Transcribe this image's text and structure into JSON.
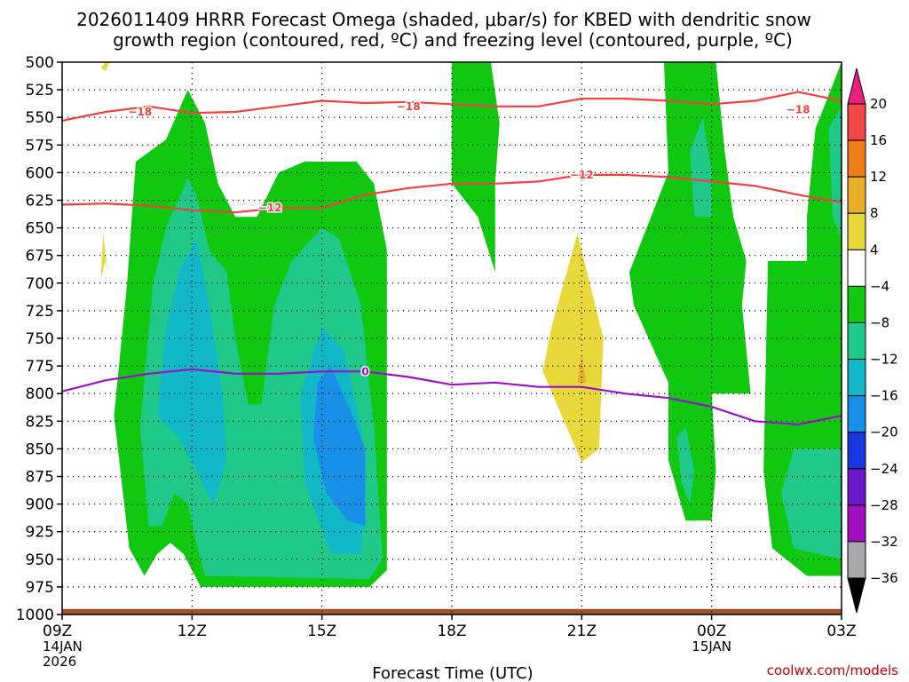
{
  "chart_data": {
    "type": "heatmap",
    "title_line1": "2026011409 HRRR Forecast Omega (shaded, μbar/s) for KBED with dendritic snow",
    "title_line2": "growth region (contoured, red, ºC) and freezing level (contoured, purple, ºC)",
    "xlabel": "Forecast Time (UTC)",
    "credit": "coolwx.com/models",
    "y_axis": {
      "inverted": true,
      "ylim": [
        500,
        1000
      ],
      "ticks": [
        500,
        525,
        550,
        575,
        600,
        625,
        650,
        675,
        700,
        725,
        750,
        775,
        800,
        825,
        850,
        875,
        900,
        925,
        950,
        975,
        1000
      ]
    },
    "x_axis": {
      "xlim": [
        9,
        27
      ],
      "ticks": [
        {
          "x": 9,
          "lines": [
            "09Z",
            "14JAN",
            "2026"
          ]
        },
        {
          "x": 12,
          "lines": [
            "12Z"
          ]
        },
        {
          "x": 15,
          "lines": [
            "15Z"
          ]
        },
        {
          "x": 18,
          "lines": [
            "18Z"
          ]
        },
        {
          "x": 21,
          "lines": [
            "21Z"
          ]
        },
        {
          "x": 24,
          "lines": [
            "00Z",
            "15JAN"
          ]
        },
        {
          "x": 27,
          "lines": [
            "03Z"
          ]
        }
      ],
      "grid_dotted": true
    },
    "colorbar": {
      "levels": [
        "20",
        "16",
        "12",
        "8",
        "4",
        "−4",
        "−8",
        "−12",
        "−16",
        "−20",
        "−24",
        "−28",
        "−32",
        "−36"
      ],
      "colors": [
        "#e8207d",
        "#f04848",
        "#ee7d1c",
        "#e8ae2a",
        "#e8d83a",
        "#ffffff",
        "#10c810",
        "#20c88a",
        "#10b8c8",
        "#1890e8",
        "#1838e0",
        "#6a18c8",
        "#a010c0",
        "#a8a8a8",
        "#000000"
      ]
    },
    "shaded_regions": [
      {
        "class": "-8 to -4",
        "color": "#10c810",
        "pts": [
          [
            10.55,
            940
          ],
          [
            10.2,
            820
          ],
          [
            10.5,
            700
          ],
          [
            10.7,
            590
          ],
          [
            11.4,
            570
          ],
          [
            11.9,
            525
          ],
          [
            12.3,
            555
          ],
          [
            12.6,
            610
          ],
          [
            13.0,
            640
          ],
          [
            13.5,
            640
          ],
          [
            14.0,
            600
          ],
          [
            14.6,
            590
          ],
          [
            15.8,
            590
          ],
          [
            16.2,
            610
          ],
          [
            16.5,
            670
          ],
          [
            16.5,
            960
          ],
          [
            16.1,
            975
          ],
          [
            12.2,
            975
          ],
          [
            11.8,
            945
          ],
          [
            11.5,
            935
          ],
          [
            11.2,
            945
          ],
          [
            10.9,
            965
          ],
          [
            10.55,
            940
          ]
        ]
      },
      {
        "class": "-12 to -8",
        "color": "#20c88a",
        "pts": [
          [
            11.0,
            920
          ],
          [
            10.8,
            830
          ],
          [
            11.1,
            700
          ],
          [
            11.4,
            650
          ],
          [
            11.9,
            605
          ],
          [
            12.1,
            620
          ],
          [
            12.4,
            670
          ],
          [
            12.8,
            690
          ],
          [
            13.0,
            750
          ],
          [
            13.3,
            810
          ],
          [
            13.6,
            810
          ],
          [
            13.9,
            720
          ],
          [
            14.3,
            680
          ],
          [
            15.0,
            650
          ],
          [
            15.4,
            660
          ],
          [
            15.9,
            720
          ],
          [
            16.2,
            830
          ],
          [
            16.4,
            950
          ],
          [
            16.1,
            968
          ],
          [
            12.3,
            965
          ],
          [
            12.1,
            935
          ],
          [
            11.9,
            900
          ],
          [
            11.6,
            890
          ],
          [
            11.3,
            920
          ],
          [
            11.0,
            920
          ]
        ]
      },
      {
        "class": "-16 to -12",
        "color": "#10b8c8",
        "pts": [
          [
            11.2,
            820
          ],
          [
            11.4,
            740
          ],
          [
            11.7,
            690
          ],
          [
            12.1,
            660
          ],
          [
            12.4,
            720
          ],
          [
            12.7,
            800
          ],
          [
            12.8,
            860
          ],
          [
            12.5,
            900
          ],
          [
            12.1,
            870
          ],
          [
            11.7,
            840
          ],
          [
            11.2,
            820
          ]
        ]
      },
      {
        "class": "-16 to -12",
        "color": "#10b8c8",
        "pts": [
          [
            14.6,
            880
          ],
          [
            14.5,
            800
          ],
          [
            15.0,
            740
          ],
          [
            15.5,
            760
          ],
          [
            15.9,
            830
          ],
          [
            16.0,
            900
          ],
          [
            15.9,
            945
          ],
          [
            15.2,
            945
          ],
          [
            14.6,
            880
          ]
        ]
      },
      {
        "class": "-20 to -16",
        "color": "#1890e8",
        "pts": [
          [
            14.8,
            840
          ],
          [
            14.9,
            790
          ],
          [
            15.2,
            775
          ],
          [
            15.6,
            810
          ],
          [
            16.0,
            850
          ],
          [
            16.0,
            920
          ],
          [
            15.6,
            915
          ],
          [
            15.1,
            890
          ],
          [
            14.8,
            840
          ]
        ]
      },
      {
        "class": "-8 to -4",
        "color": "#10c810",
        "pts": [
          [
            18.0,
            500
          ],
          [
            18.9,
            500
          ],
          [
            19.1,
            555
          ],
          [
            19.0,
            610
          ],
          [
            19.0,
            690
          ],
          [
            18.6,
            640
          ],
          [
            18.0,
            610
          ],
          [
            18.0,
            500
          ]
        ]
      },
      {
        "class": "-8 to -4",
        "color": "#10c810",
        "pts": [
          [
            22.9,
            500
          ],
          [
            24.1,
            500
          ],
          [
            24.3,
            580
          ],
          [
            24.5,
            640
          ],
          [
            24.8,
            680
          ],
          [
            24.7,
            720
          ],
          [
            24.9,
            800
          ],
          [
            24.0,
            800
          ],
          [
            24.1,
            870
          ],
          [
            24.0,
            915
          ],
          [
            23.4,
            915
          ],
          [
            23.0,
            860
          ],
          [
            23.0,
            790
          ],
          [
            22.2,
            720
          ],
          [
            22.1,
            690
          ],
          [
            23.0,
            600
          ],
          [
            22.9,
            500
          ]
        ]
      },
      {
        "class": "-12 to -8",
        "color": "#20c88a",
        "pts": [
          [
            23.5,
            580
          ],
          [
            23.8,
            550
          ],
          [
            24.0,
            600
          ],
          [
            24.0,
            640
          ],
          [
            23.6,
            640
          ],
          [
            23.5,
            580
          ]
        ]
      },
      {
        "class": "-12 to -8",
        "color": "#20c88a",
        "pts": [
          [
            23.2,
            840
          ],
          [
            23.4,
            830
          ],
          [
            23.6,
            870
          ],
          [
            23.5,
            900
          ],
          [
            23.3,
            880
          ],
          [
            23.2,
            840
          ]
        ]
      },
      {
        "class": "-8 to -4",
        "color": "#10c810",
        "pts": [
          [
            25.2,
            870
          ],
          [
            25.3,
            680
          ],
          [
            26.2,
            680
          ],
          [
            26.2,
            640
          ],
          [
            26.4,
            560
          ],
          [
            26.7,
            530
          ],
          [
            27.0,
            500
          ],
          [
            27.0,
            965
          ],
          [
            26.2,
            965
          ],
          [
            25.4,
            940
          ],
          [
            25.2,
            870
          ]
        ]
      },
      {
        "class": "-12 to -8",
        "color": "#20c88a",
        "pts": [
          [
            27.0,
            540
          ],
          [
            26.7,
            560
          ],
          [
            26.8,
            640
          ],
          [
            27.0,
            660
          ],
          [
            27.0,
            540
          ]
        ]
      },
      {
        "class": "-12 to -8",
        "color": "#20c88a",
        "pts": [
          [
            25.6,
            890
          ],
          [
            25.9,
            850
          ],
          [
            27.0,
            850
          ],
          [
            27.0,
            950
          ],
          [
            25.9,
            940
          ],
          [
            25.6,
            890
          ]
        ]
      },
      {
        "class": "4 to 8",
        "color": "#e8d83a",
        "pts": [
          [
            20.9,
            655
          ],
          [
            21.5,
            750
          ],
          [
            21.4,
            850
          ],
          [
            21.0,
            862
          ],
          [
            20.1,
            780
          ],
          [
            20.3,
            740
          ],
          [
            20.9,
            655
          ]
        ]
      },
      {
        "class": "8 to 12",
        "color": "#e8ae2a",
        "pts": [
          [
            21.0,
            765
          ],
          [
            21.1,
            790
          ],
          [
            20.9,
            790
          ],
          [
            20.95,
            775
          ],
          [
            21.0,
            765
          ]
        ]
      },
      {
        "class": "4 to 8",
        "color": "#e8d83a",
        "pts": [
          [
            10.0,
            500
          ],
          [
            10.1,
            500
          ],
          [
            10.0,
            508
          ],
          [
            9.9,
            505
          ],
          [
            10.0,
            500
          ]
        ]
      },
      {
        "class": "4 to 8",
        "color": "#e8d83a",
        "pts": [
          [
            9.95,
            655
          ],
          [
            10.05,
            690
          ],
          [
            10.0,
            680
          ],
          [
            9.9,
            695
          ],
          [
            9.9,
            690
          ],
          [
            9.95,
            655
          ]
        ]
      }
    ],
    "contours": [
      {
        "name": "-18 C",
        "color": "#f04040",
        "label": "−18",
        "label_at": [
          [
            10.8,
            545
          ],
          [
            17.0,
            540
          ],
          [
            26.0,
            543
          ]
        ],
        "pts": [
          [
            9,
            553
          ],
          [
            10,
            545
          ],
          [
            11,
            540
          ],
          [
            12,
            546
          ],
          [
            13,
            545
          ],
          [
            14,
            540
          ],
          [
            15,
            535
          ],
          [
            16,
            537
          ],
          [
            17,
            536
          ],
          [
            18,
            538
          ],
          [
            19,
            540
          ],
          [
            20,
            540
          ],
          [
            21,
            533
          ],
          [
            22,
            533
          ],
          [
            23,
            535
          ],
          [
            24,
            538
          ],
          [
            25,
            535
          ],
          [
            26,
            527
          ],
          [
            27,
            535
          ]
        ]
      },
      {
        "name": "-12 C",
        "color": "#f04040",
        "label": "−12",
        "label_at": [
          [
            13.8,
            632
          ],
          [
            21.0,
            602
          ]
        ],
        "pts": [
          [
            9,
            629
          ],
          [
            10,
            628
          ],
          [
            11,
            630
          ],
          [
            12,
            634
          ],
          [
            13,
            636
          ],
          [
            14,
            632
          ],
          [
            15,
            632
          ],
          [
            16,
            620
          ],
          [
            17,
            614
          ],
          [
            18,
            610
          ],
          [
            19,
            610
          ],
          [
            20,
            608
          ],
          [
            21,
            602
          ],
          [
            22,
            602
          ],
          [
            23,
            604
          ],
          [
            24,
            608
          ],
          [
            25,
            612
          ],
          [
            26,
            620
          ],
          [
            27,
            627
          ]
        ]
      },
      {
        "name": "0 C freezing level",
        "color": "#9a10c8",
        "label": "0",
        "label_at": [
          [
            16.0,
            780
          ]
        ],
        "pts": [
          [
            9,
            798
          ],
          [
            10,
            788
          ],
          [
            11,
            782
          ],
          [
            12,
            778
          ],
          [
            13,
            782
          ],
          [
            14,
            782
          ],
          [
            15,
            780
          ],
          [
            16,
            780
          ],
          [
            17,
            785
          ],
          [
            18,
            792
          ],
          [
            19,
            790
          ],
          [
            20,
            794
          ],
          [
            21,
            794
          ],
          [
            22,
            800
          ],
          [
            23,
            804
          ],
          [
            24,
            812
          ],
          [
            25,
            825
          ],
          [
            26,
            828
          ],
          [
            27,
            820
          ]
        ]
      }
    ],
    "ground": {
      "color": "#a0522d",
      "top_hPa": 995,
      "note": "surface strip at 1000 hPa"
    }
  }
}
